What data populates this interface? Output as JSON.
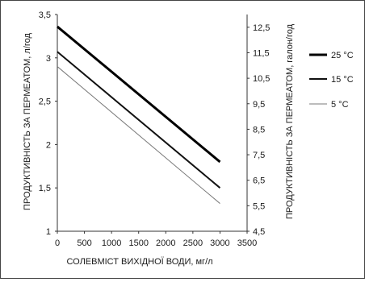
{
  "chart_data": {
    "type": "line",
    "title": "",
    "xlabel": "СОЛЕВМІСТ ВИХІДНОЇ ВОДИ, мг/л",
    "ylabel_left": "ПРОДУКТИВНІСТЬ ЗА ПЕРМЕАТОМ, л/год",
    "ylabel_right": "ПРОДУКТИВНІСТЬ ЗА ПЕРМЕАТОМ, галон/год",
    "xlim": [
      0,
      3500
    ],
    "ylim_left": [
      1,
      3.5
    ],
    "ylim_right": [
      4.5,
      13
    ],
    "x_ticks": [
      "0",
      "500",
      "1000",
      "1500",
      "2000",
      "2500",
      "3000",
      "3500"
    ],
    "y_ticks_left": [
      "1",
      "1,5",
      "2",
      "2,5",
      "3",
      "3,5"
    ],
    "y_ticks_right": [
      "4,5",
      "5,5",
      "6,5",
      "7,5",
      "8,5",
      "9,5",
      "10,5",
      "11,5",
      "12,5"
    ],
    "grid": false,
    "legend_position": "right",
    "series": [
      {
        "name": "25 °C",
        "x": [
          0,
          3000
        ],
        "y": [
          3.36,
          1.8
        ],
        "color": "#000000",
        "stroke": "thick"
      },
      {
        "name": "15 °C",
        "x": [
          0,
          3000
        ],
        "y": [
          3.07,
          1.5
        ],
        "color": "#111111",
        "stroke": "medium"
      },
      {
        "name": "5 °C",
        "x": [
          0,
          3000
        ],
        "y": [
          2.9,
          1.32
        ],
        "color": "#7a7a7a",
        "stroke": "thin"
      }
    ]
  }
}
